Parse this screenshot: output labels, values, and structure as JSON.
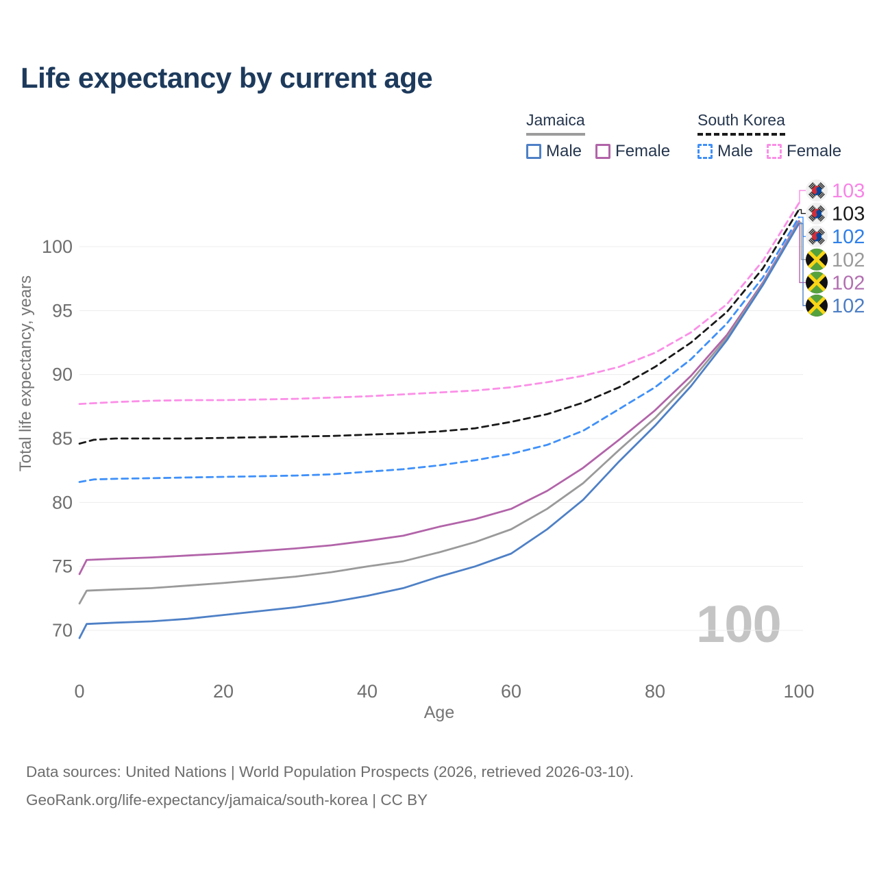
{
  "title": "Life expectancy by current age",
  "watermark": "100",
  "footer": {
    "line1": "Data sources: United Nations | World Population Prospects (2026, retrieved 2026-03-10).",
    "line2": "GeoRank.org/life-expectancy/jamaica/south-korea | CC BY"
  },
  "legend": {
    "groups": [
      {
        "country": "Jamaica",
        "line_style": "solid",
        "underline_color": "#9c9c9c",
        "items": [
          {
            "label": "Male",
            "color": "#4e80c6",
            "box_style": "solid"
          },
          {
            "label": "Female",
            "color": "#b264a9",
            "box_style": "solid"
          }
        ]
      },
      {
        "country": "South Korea",
        "line_style": "dashed",
        "underline_color": "#1a1a1a",
        "items": [
          {
            "label": "Male",
            "color": "#3f90f9",
            "box_style": "dashed"
          },
          {
            "label": "Female",
            "color": "#fb8fe7",
            "box_style": "dashed"
          }
        ]
      }
    ]
  },
  "chart_data": {
    "type": "line",
    "title": "Life expectancy by current age",
    "xlabel": "Age",
    "ylabel": "Total life expectancy, years",
    "xticks": [
      0,
      20,
      40,
      60,
      80,
      100
    ],
    "yticks": [
      70,
      75,
      80,
      85,
      90,
      95,
      100
    ],
    "xlim": [
      0,
      100
    ],
    "ylim": [
      66,
      105
    ],
    "grid": "horizontal",
    "legend_position": "top-right",
    "series": [
      {
        "id": "south-korea-female",
        "name": "South Korea Female",
        "country": "South Korea",
        "sex": "Female",
        "color": "#fb8fe7",
        "dashed": true,
        "flag": "kr",
        "end_label": "103",
        "label_color": "#f884e6",
        "label_row": 0,
        "points": [
          [
            0,
            87.7
          ],
          [
            5,
            87.85
          ],
          [
            10,
            87.95
          ],
          [
            15,
            88.0
          ],
          [
            20,
            88.0
          ],
          [
            25,
            88.05
          ],
          [
            30,
            88.1
          ],
          [
            35,
            88.2
          ],
          [
            40,
            88.3
          ],
          [
            45,
            88.45
          ],
          [
            50,
            88.6
          ],
          [
            55,
            88.75
          ],
          [
            60,
            89.0
          ],
          [
            65,
            89.4
          ],
          [
            70,
            89.9
          ],
          [
            75,
            90.6
          ],
          [
            80,
            91.7
          ],
          [
            85,
            93.3
          ],
          [
            90,
            95.5
          ],
          [
            95,
            98.9
          ],
          [
            100,
            103.4
          ]
        ]
      },
      {
        "id": "south-korea-total",
        "name": "South Korea",
        "country": "South Korea",
        "sex": "Both",
        "color": "#191919",
        "dashed": true,
        "flag": "kr",
        "end_label": "103",
        "label_color": "#1a1a1a",
        "label_row": 1,
        "points": [
          [
            0,
            84.6
          ],
          [
            2,
            84.9
          ],
          [
            5,
            85.0
          ],
          [
            10,
            85.0
          ],
          [
            15,
            85.0
          ],
          [
            20,
            85.05
          ],
          [
            25,
            85.1
          ],
          [
            30,
            85.15
          ],
          [
            35,
            85.2
          ],
          [
            40,
            85.3
          ],
          [
            45,
            85.4
          ],
          [
            50,
            85.55
          ],
          [
            55,
            85.8
          ],
          [
            60,
            86.3
          ],
          [
            65,
            86.9
          ],
          [
            70,
            87.8
          ],
          [
            75,
            89.0
          ],
          [
            80,
            90.6
          ],
          [
            85,
            92.5
          ],
          [
            90,
            94.9
          ],
          [
            95,
            98.3
          ],
          [
            100,
            102.9
          ]
        ]
      },
      {
        "id": "south-korea-male",
        "name": "South Korea Male",
        "country": "South Korea",
        "sex": "Male",
        "color": "#3f90f9",
        "dashed": true,
        "flag": "kr",
        "end_label": "102",
        "label_color": "#2e80e8",
        "label_row": 2,
        "points": [
          [
            0,
            81.6
          ],
          [
            2,
            81.8
          ],
          [
            5,
            81.85
          ],
          [
            10,
            81.9
          ],
          [
            15,
            81.95
          ],
          [
            20,
            82.0
          ],
          [
            25,
            82.05
          ],
          [
            30,
            82.1
          ],
          [
            35,
            82.2
          ],
          [
            40,
            82.4
          ],
          [
            45,
            82.6
          ],
          [
            50,
            82.9
          ],
          [
            55,
            83.3
          ],
          [
            60,
            83.8
          ],
          [
            65,
            84.5
          ],
          [
            70,
            85.6
          ],
          [
            75,
            87.3
          ],
          [
            80,
            89.0
          ],
          [
            85,
            91.2
          ],
          [
            90,
            94.0
          ],
          [
            95,
            97.6
          ],
          [
            100,
            102.3
          ]
        ]
      },
      {
        "id": "jamaica-female",
        "name": "Jamaica Female",
        "country": "Jamaica",
        "sex": "Female",
        "color": "#b264a9",
        "dashed": false,
        "flag": "jm",
        "end_label": "102",
        "label_color": "#b26fb0",
        "label_row": 4,
        "points": [
          [
            0,
            74.4
          ],
          [
            1,
            75.5
          ],
          [
            5,
            75.6
          ],
          [
            10,
            75.7
          ],
          [
            15,
            75.85
          ],
          [
            20,
            76.0
          ],
          [
            25,
            76.2
          ],
          [
            30,
            76.4
          ],
          [
            35,
            76.65
          ],
          [
            40,
            77.0
          ],
          [
            45,
            77.4
          ],
          [
            50,
            78.1
          ],
          [
            55,
            78.7
          ],
          [
            60,
            79.5
          ],
          [
            65,
            80.9
          ],
          [
            70,
            82.7
          ],
          [
            75,
            84.9
          ],
          [
            80,
            87.2
          ],
          [
            85,
            89.9
          ],
          [
            90,
            93.1
          ],
          [
            95,
            97.2
          ],
          [
            100,
            102.0
          ]
        ]
      },
      {
        "id": "jamaica-total",
        "name": "Jamaica",
        "country": "Jamaica",
        "sex": "Both",
        "color": "#9a9a9a",
        "dashed": false,
        "flag": "jm",
        "end_label": "102",
        "label_color": "#9a9a9a",
        "label_row": 3,
        "points": [
          [
            0,
            72.1
          ],
          [
            1,
            73.1
          ],
          [
            5,
            73.2
          ],
          [
            10,
            73.3
          ],
          [
            15,
            73.5
          ],
          [
            20,
            73.7
          ],
          [
            25,
            73.95
          ],
          [
            30,
            74.2
          ],
          [
            35,
            74.55
          ],
          [
            40,
            75.0
          ],
          [
            45,
            75.4
          ],
          [
            50,
            76.1
          ],
          [
            55,
            76.9
          ],
          [
            60,
            77.9
          ],
          [
            65,
            79.5
          ],
          [
            70,
            81.5
          ],
          [
            75,
            84.1
          ],
          [
            80,
            86.6
          ],
          [
            85,
            89.5
          ],
          [
            90,
            92.9
          ],
          [
            95,
            97.1
          ],
          [
            100,
            101.9
          ]
        ]
      },
      {
        "id": "jamaica-male",
        "name": "Jamaica Male",
        "country": "Jamaica",
        "sex": "Male",
        "color": "#4e80c6",
        "dashed": false,
        "flag": "jm",
        "end_label": "102",
        "label_color": "#4d7ec4",
        "label_row": 5,
        "points": [
          [
            0,
            69.4
          ],
          [
            1,
            70.5
          ],
          [
            5,
            70.6
          ],
          [
            10,
            70.7
          ],
          [
            15,
            70.9
          ],
          [
            20,
            71.2
          ],
          [
            25,
            71.5
          ],
          [
            30,
            71.8
          ],
          [
            35,
            72.2
          ],
          [
            40,
            72.7
          ],
          [
            45,
            73.3
          ],
          [
            50,
            74.2
          ],
          [
            55,
            75.0
          ],
          [
            60,
            76.0
          ],
          [
            65,
            77.9
          ],
          [
            70,
            80.2
          ],
          [
            75,
            83.2
          ],
          [
            80,
            86.0
          ],
          [
            85,
            89.1
          ],
          [
            90,
            92.7
          ],
          [
            95,
            97.0
          ],
          [
            100,
            101.8
          ]
        ]
      }
    ]
  }
}
